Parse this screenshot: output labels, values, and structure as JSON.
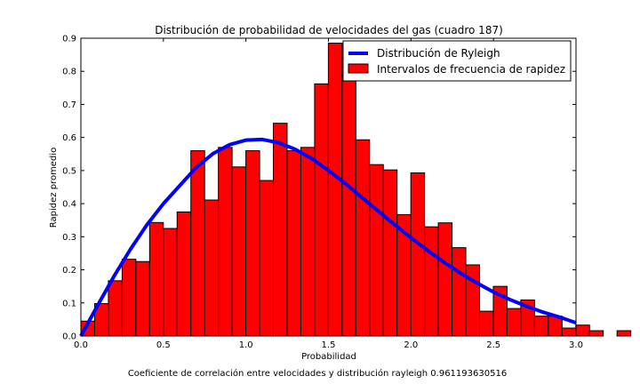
{
  "chart_data": {
    "type": "bar",
    "title": "Distribución de probabilidad de velocidades del gas (cuadro 187)",
    "xlabel": "Probabilidad",
    "ylabel": "Rapidez promedio",
    "footer": "Coeficiente de correlación entre velocidades y distribución rayleigh 0.961193630516",
    "xlim": [
      0,
      3
    ],
    "ylim": [
      0,
      0.9
    ],
    "x_ticks": [
      "0.0",
      "0.5",
      "1.0",
      "1.5",
      "2.0",
      "2.5",
      "3.0"
    ],
    "y_ticks": [
      "0.0",
      "0.1",
      "0.2",
      "0.3",
      "0.4",
      "0.5",
      "0.6",
      "0.7",
      "0.8",
      "0.9"
    ],
    "grid": false,
    "legend_position": "top-right",
    "series": [
      {
        "name": "Intervalos de frecuencia de rapidez",
        "kind": "histogram",
        "color": "#ff0000",
        "bin_width": 0.0833,
        "bin_start": 0.0,
        "values": [
          0.045,
          0.098,
          0.167,
          0.232,
          0.225,
          0.343,
          0.325,
          0.375,
          0.56,
          0.411,
          0.57,
          0.511,
          0.56,
          0.47,
          0.643,
          0.56,
          0.57,
          0.762,
          0.885,
          0.802,
          0.593,
          0.518,
          0.502,
          0.367,
          0.493,
          0.33,
          0.342,
          0.267,
          0.215,
          0.075,
          0.15,
          0.083,
          0.109,
          0.06,
          0.06,
          0.024,
          0.033,
          0.016,
          0.0,
          0.016
        ]
      },
      {
        "name": "Distribución de Ryleigh",
        "kind": "line",
        "color": "#0000ff",
        "x": [
          0.0,
          0.1,
          0.2,
          0.3,
          0.4,
          0.5,
          0.6,
          0.7,
          0.8,
          0.9,
          1.0,
          1.1,
          1.2,
          1.3,
          1.4,
          1.5,
          1.6,
          1.7,
          1.8,
          1.9,
          2.0,
          2.1,
          2.2,
          2.3,
          2.4,
          2.5,
          2.6,
          2.7,
          2.8,
          2.9,
          3.0
        ],
        "y": [
          0.0,
          0.091,
          0.18,
          0.262,
          0.336,
          0.4,
          0.455,
          0.51,
          0.551,
          0.578,
          0.592,
          0.594,
          0.584,
          0.564,
          0.536,
          0.5,
          0.462,
          0.42,
          0.378,
          0.337,
          0.297,
          0.259,
          0.223,
          0.19,
          0.16,
          0.133,
          0.11,
          0.09,
          0.072,
          0.057,
          0.04
        ]
      }
    ]
  }
}
